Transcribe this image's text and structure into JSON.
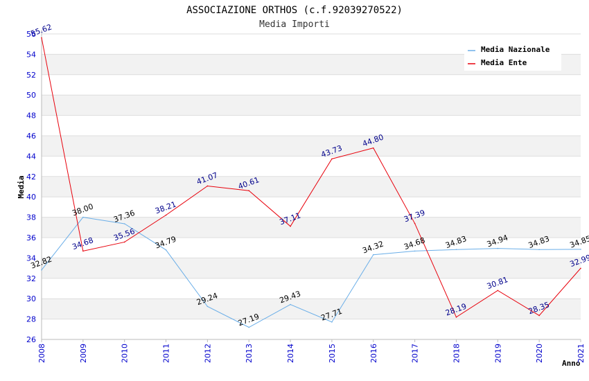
{
  "chart_data": {
    "type": "line",
    "title": "ASSOCIAZIONE ORTHOS (c.f.92039270522)",
    "subtitle": "Media Importi",
    "xlabel": "Anno",
    "ylabel": "Media",
    "x": [
      "2008",
      "2009",
      "2010",
      "2011",
      "2012",
      "2013",
      "2014",
      "2015",
      "2016",
      "2017",
      "2018",
      "2019",
      "2020",
      "2021"
    ],
    "ylim": [
      26,
      56
    ],
    "yticks": [
      "26",
      "28",
      "30",
      "32",
      "34",
      "36",
      "38",
      "40",
      "42",
      "44",
      "46",
      "48",
      "50",
      "52",
      "54",
      "56"
    ],
    "grid": true,
    "legend_position": "top-right",
    "series": [
      {
        "name": "Media Nazionale",
        "color": "#6aaee8",
        "label_color": "#000000",
        "values": [
          32.82,
          38.0,
          37.36,
          34.79,
          29.24,
          27.19,
          29.43,
          27.71,
          34.32,
          34.68,
          34.83,
          34.94,
          34.83,
          34.85
        ],
        "labels": [
          "32.82",
          "38.00",
          "37.36",
          "34.79",
          "29.24",
          "27.19",
          "29.43",
          "27.71",
          "34.32",
          "34.68",
          "34.83",
          "34.94",
          "34.83",
          "34.85"
        ]
      },
      {
        "name": "Media Ente",
        "color": "#e8000b",
        "label_color": "#00008b",
        "values": [
          55.62,
          34.68,
          35.56,
          38.21,
          41.07,
          40.61,
          37.11,
          43.73,
          44.8,
          37.39,
          28.19,
          30.81,
          28.35,
          32.99
        ],
        "labels": [
          "55.62",
          "34.68",
          "35.56",
          "38.21",
          "41.07",
          "40.61",
          "37.11",
          "43.73",
          "44.80",
          "37.39",
          "28.19",
          "30.81",
          "28.35",
          "32.99"
        ]
      }
    ]
  }
}
